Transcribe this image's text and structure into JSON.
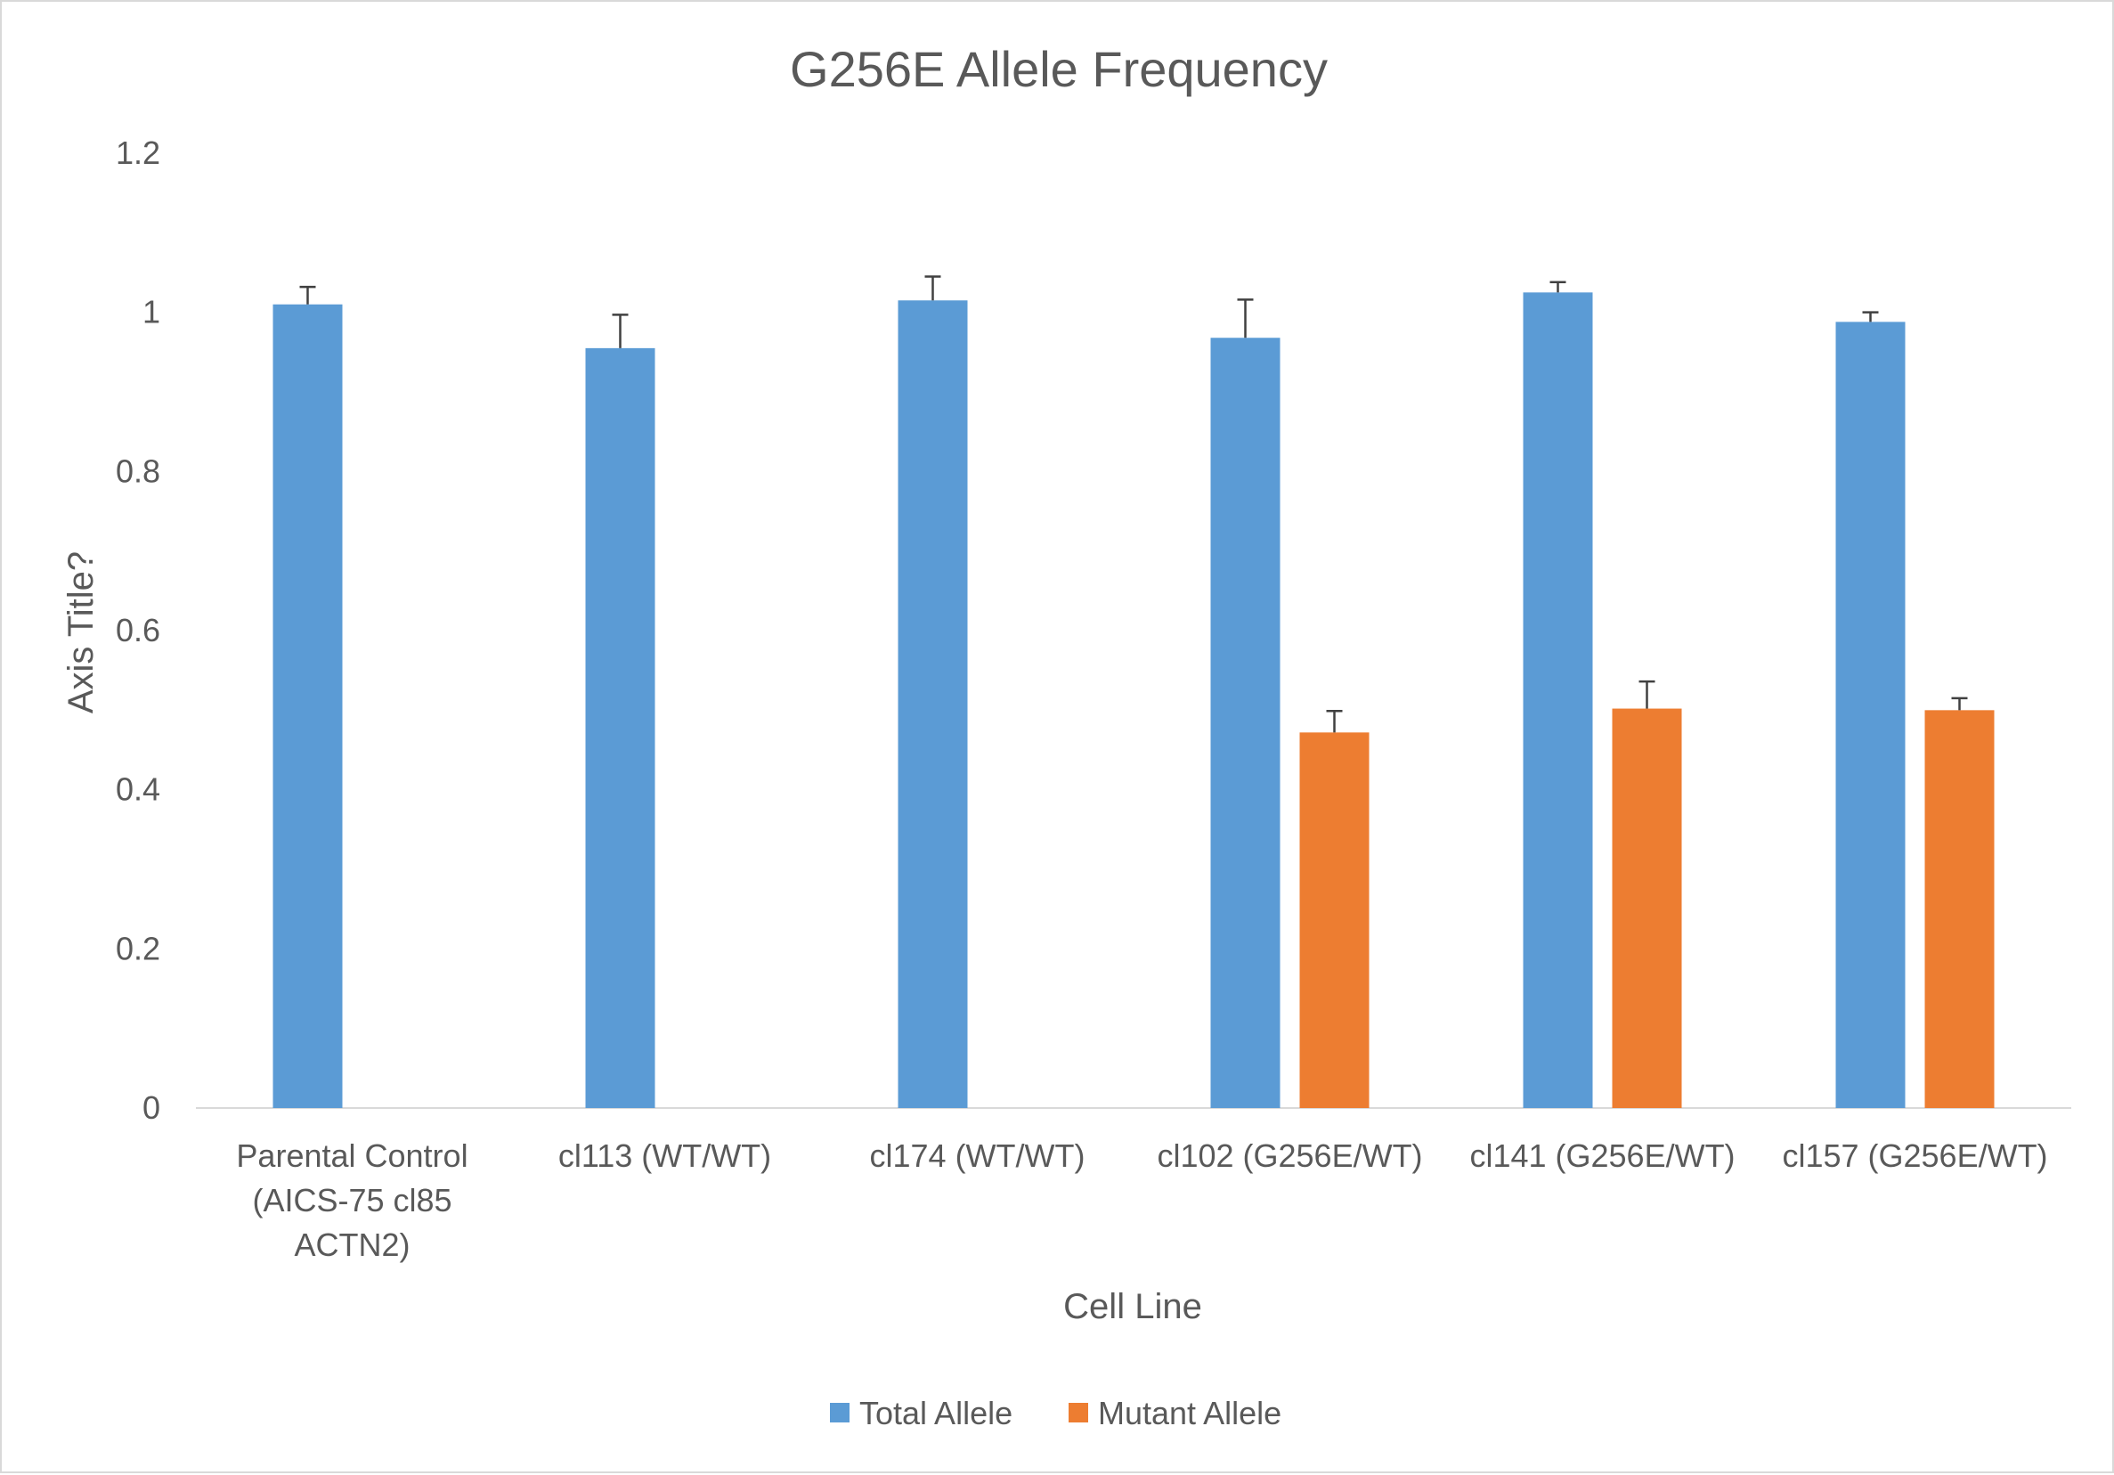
{
  "chart_data": {
    "type": "bar",
    "title": "G256E Allele Frequency",
    "xlabel": "Cell Line",
    "ylabel": "Axis Title?",
    "ylim": [
      0,
      1.2
    ],
    "yticks": [
      0,
      0.2,
      0.4,
      0.6,
      0.8,
      1,
      1.2
    ],
    "ytick_labels": [
      "0",
      "0.2",
      "0.4",
      "0.6",
      "0.8",
      "1",
      "1.2"
    ],
    "categories": [
      [
        "Parental Control",
        "(AICS-75 cl85",
        "ACTN2)"
      ],
      [
        "cl113 (WT/WT)"
      ],
      [
        "cl174 (WT/WT)"
      ],
      [
        "cl102 (G256E/WT)"
      ],
      [
        "cl141 (G256E/WT)"
      ],
      [
        "cl157 (G256E/WT)"
      ]
    ],
    "series": [
      {
        "name": "Total Allele",
        "color": "#5b9bd5",
        "values": [
          1.01,
          0.955,
          1.015,
          0.968,
          1.025,
          0.988
        ],
        "errors": [
          0.022,
          0.042,
          0.03,
          0.048,
          0.013,
          0.012
        ]
      },
      {
        "name": "Mutant Allele",
        "color": "#ed7d31",
        "values": [
          null,
          null,
          null,
          0.472,
          0.502,
          0.5
        ],
        "errors": [
          null,
          null,
          null,
          0.027,
          0.034,
          0.015
        ]
      }
    ],
    "grid": false,
    "legend_position": "bottom",
    "error_bars": true
  }
}
